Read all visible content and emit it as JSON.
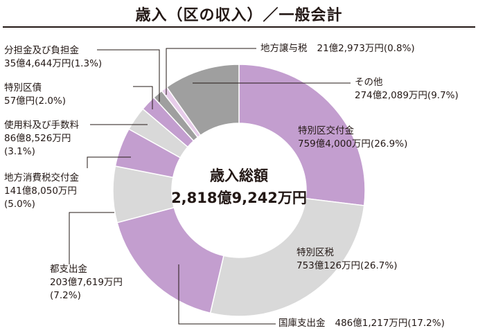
{
  "title": "歳入（区の収入）／一般会計",
  "center": {
    "label": "歳入総額",
    "total": "2,818億9,242万円"
  },
  "chart_data": {
    "type": "pie",
    "title": "歳入（区の収入）／一般会計",
    "total_label": "歳入総額",
    "total": "2,818億9,242万円",
    "slices": [
      {
        "name": "特別区交付金",
        "amount": "759億4,000万円",
        "percent": 26.9,
        "percent_label": "(26.9%)",
        "color": "#c39ecf"
      },
      {
        "name": "特別区税",
        "amount": "753億126万円",
        "percent": 26.7,
        "percent_label": "(26.7%)",
        "color": "#d9d9d9"
      },
      {
        "name": "国庫支出金",
        "amount": "486億1,217万円",
        "percent": 17.2,
        "percent_label": "(17.2%)",
        "color": "#c39ecf"
      },
      {
        "name": "都支出金",
        "amount": "203億7,619万円",
        "percent": 7.2,
        "percent_label": "(7.2%)",
        "color": "#d9d9d9"
      },
      {
        "name": "地方消費税交付金",
        "amount": "141億8,050万円",
        "percent": 5.0,
        "percent_label": "(5.0%)",
        "color": "#c39ecf"
      },
      {
        "name": "使用料及び手数料",
        "amount": "86億8,526万円",
        "percent": 3.1,
        "percent_label": "(3.1%)",
        "color": "#d9d9d9"
      },
      {
        "name": "特別区債",
        "amount": "57億円",
        "percent": 2.0,
        "percent_label": "(2.0%)",
        "color": "#c39ecf"
      },
      {
        "name": "分担金及び負担金",
        "amount": "35億4,644万円",
        "percent": 1.3,
        "percent_label": "(1.3%)",
        "color": "#9f9f9f"
      },
      {
        "name": "地方譲与税",
        "amount": "21億2,973万円",
        "percent": 0.8,
        "percent_label": "(0.8%)",
        "color": "#e7cdea"
      },
      {
        "name": "その他",
        "amount": "274億2,089万円",
        "percent": 9.7,
        "percent_label": "(9.7%)",
        "color": "#9f9f9f"
      }
    ]
  }
}
